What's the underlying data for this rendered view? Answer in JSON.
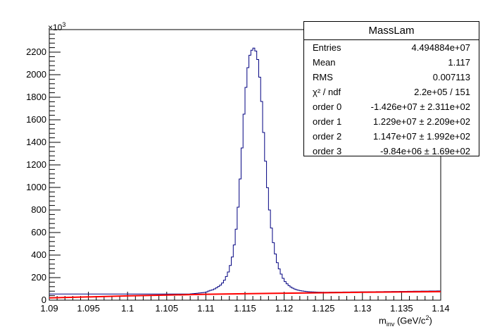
{
  "chart_data": {
    "type": "histogram",
    "xlim": [
      1.09,
      1.14
    ],
    "ylim": [
      0,
      2400
    ],
    "x_ticks": [
      "1.09",
      "1.095",
      "1.1",
      "1.105",
      "1.11",
      "1.115",
      "1.12",
      "1.125",
      "1.13",
      "1.135",
      "1.14"
    ],
    "y_ticks": [
      "0",
      "200",
      "400",
      "600",
      "800",
      "1000",
      "1200",
      "1400",
      "1600",
      "1800",
      "2000",
      "2200"
    ],
    "y_scale_label": "×10",
    "y_scale_exponent": "3",
    "xlabel_main": "m",
    "xlabel_sub": "inv",
    "xlabel_rest": " (GeV/c",
    "xlabel_sup": "2",
    "xlabel_end": ")",
    "histogram_color": "#000080",
    "fit_color": "#ff0000",
    "histogram": {
      "x": [
        1.108,
        1.109,
        1.11,
        1.1105,
        1.111,
        1.1115,
        1.112,
        1.1125,
        1.113,
        1.1135,
        1.114,
        1.1145,
        1.115,
        1.1155,
        1.116,
        1.1163,
        1.1166,
        1.117,
        1.1175,
        1.118,
        1.1185,
        1.119,
        1.1195,
        1.12,
        1.1205,
        1.121,
        1.1215,
        1.122,
        1.1225,
        1.123,
        1.124,
        1.125,
        1.127,
        1.13,
        1.135,
        1.14
      ],
      "y": [
        55,
        62,
        70,
        85,
        95,
        115,
        140,
        190,
        270,
        420,
        700,
        1200,
        1800,
        2150,
        2240,
        2230,
        2150,
        1900,
        1350,
        880,
        560,
        360,
        250,
        175,
        135,
        110,
        95,
        85,
        80,
        75,
        72,
        70,
        72,
        74,
        78,
        82
      ]
    },
    "fit_line": {
      "x": [
        1.09,
        1.1,
        1.11,
        1.12,
        1.13,
        1.14
      ],
      "y": [
        20,
        38,
        52,
        62,
        70,
        76
      ]
    }
  },
  "stats": {
    "title": "MassLam",
    "rows": [
      {
        "key": "Entries",
        "value": "4.494884e+07"
      },
      {
        "key": "Mean",
        "value": "1.117"
      },
      {
        "key": "RMS",
        "value": "0.007113"
      },
      {
        "key": "χ² / ndf",
        "value": "2.2e+05 / 151"
      },
      {
        "key": "order 0",
        "value": "-1.426e+07 ± 2.311e+02"
      },
      {
        "key": "order 1",
        "value": "1.229e+07 ± 2.209e+02"
      },
      {
        "key": "order 2",
        "value": "1.147e+07 ± 1.992e+02"
      },
      {
        "key": "order 3",
        "value": "-9.84e+06 ± 1.69e+02"
      }
    ]
  }
}
